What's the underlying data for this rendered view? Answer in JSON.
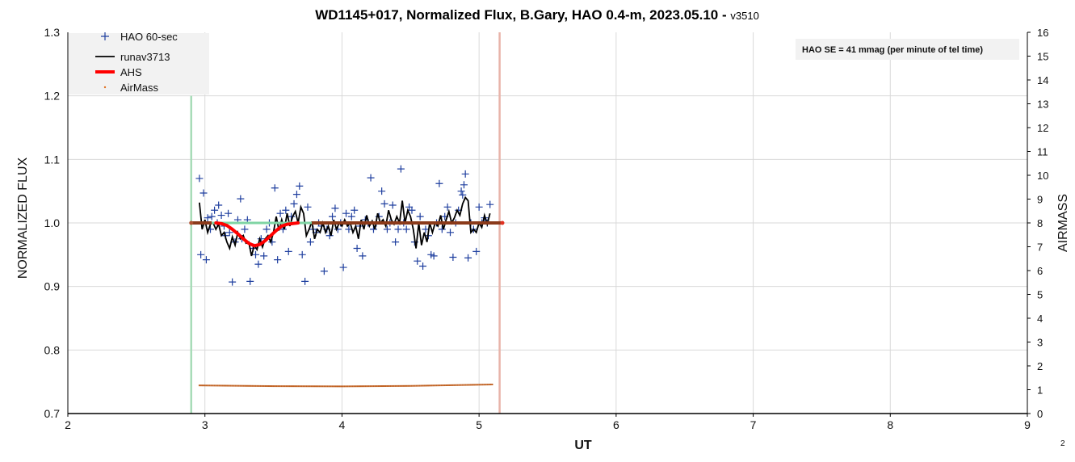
{
  "chart_data": {
    "type": "scatter",
    "title": "WD1145+017, Normalized Flux, B.Gary, HAO 0.4-m, 2023.05.10 - ",
    "title_version": "v3510",
    "xlabel": "UT",
    "ylabel": "NORMALIZED FLUX",
    "y2label": "AIRMASS",
    "xlim": [
      2,
      9
    ],
    "ylim": [
      0.7,
      1.3
    ],
    "y2lim": [
      0,
      16
    ],
    "x_ticks": [
      "2",
      "3",
      "4",
      "5",
      "6",
      "7",
      "8",
      "9"
    ],
    "y_ticks": [
      "0.7",
      "0.8",
      "0.9",
      "1.0",
      "1.1",
      "1.2",
      "1.3"
    ],
    "y2_ticks": [
      "0",
      "1",
      "2",
      "3",
      "4",
      "5",
      "6",
      "7",
      "8",
      "9",
      "10",
      "11",
      "12",
      "13",
      "14",
      "15",
      "16"
    ],
    "grid": true,
    "legend_position": "top-left",
    "legend": [
      {
        "label": "HAO 60-sec",
        "marker": "plus",
        "color": "#1f3f9f"
      },
      {
        "label": "runav3713",
        "marker": "line",
        "color": "#000000"
      },
      {
        "label": "AHS",
        "marker": "thick-line",
        "color": "#ff0000"
      },
      {
        "label": "AirMass",
        "marker": "dot",
        "color": "#e07020"
      }
    ],
    "annotation": "HAO SE =  41 mmag (per minute of tel time)",
    "corner_label": "2",
    "colors": {
      "flux": "#1f3f9f",
      "runav": "#000000",
      "ahs": "#ff0000",
      "airmass": "#c06020",
      "baseline": "#8b3a1a",
      "baseline_gap": "#7fd4a4",
      "start_line": "#a8dcb8",
      "end_line": "#e8b4aa"
    },
    "vertical_markers": [
      {
        "name": "start",
        "x": 2.9
      },
      {
        "name": "end",
        "x": 5.15
      }
    ],
    "baseline": {
      "y": 1.0,
      "x_start": 2.9,
      "x_end": 5.17,
      "gap_start": 3.05,
      "gap_end": 3.78
    },
    "flux_series": {
      "name": "HAO 60-sec",
      "points": [
        [
          2.96,
          1.07
        ],
        [
          2.97,
          0.95
        ],
        [
          2.99,
          1.047
        ],
        [
          3.01,
          0.942
        ],
        [
          3.02,
          1.008
        ],
        [
          3.04,
          0.99
        ],
        [
          3.05,
          1.01
        ],
        [
          3.07,
          1.02
        ],
        [
          3.09,
          1.0
        ],
        [
          3.1,
          1.028
        ],
        [
          3.12,
          1.012
        ],
        [
          3.14,
          0.995
        ],
        [
          3.15,
          0.98
        ],
        [
          3.17,
          1.015
        ],
        [
          3.18,
          0.985
        ],
        [
          3.2,
          0.907
        ],
        [
          3.22,
          0.97
        ],
        [
          3.24,
          1.005
        ],
        [
          3.26,
          1.038
        ],
        [
          3.27,
          0.975
        ],
        [
          3.29,
          0.99
        ],
        [
          3.31,
          1.005
        ],
        [
          3.33,
          0.908
        ],
        [
          3.35,
          0.96
        ],
        [
          3.37,
          0.95
        ],
        [
          3.39,
          0.935
        ],
        [
          3.41,
          0.975
        ],
        [
          3.43,
          0.948
        ],
        [
          3.45,
          0.99
        ],
        [
          3.47,
          1.0
        ],
        [
          3.49,
          0.97
        ],
        [
          3.51,
          1.055
        ],
        [
          3.53,
          0.942
        ],
        [
          3.55,
          1.015
        ],
        [
          3.57,
          0.99
        ],
        [
          3.59,
          1.02
        ],
        [
          3.61,
          0.955
        ],
        [
          3.63,
          1.01
        ],
        [
          3.65,
          1.03
        ],
        [
          3.67,
          1.045
        ],
        [
          3.69,
          1.058
        ],
        [
          3.71,
          0.95
        ],
        [
          3.73,
          0.908
        ],
        [
          3.75,
          1.025
        ],
        [
          3.77,
          0.97
        ],
        [
          3.79,
          0.99
        ],
        [
          3.81,
          0.985
        ],
        [
          3.83,
          1.0
        ],
        [
          3.85,
          0.995
        ],
        [
          3.87,
          0.924
        ],
        [
          3.89,
          0.99
        ],
        [
          3.91,
          0.98
        ],
        [
          3.93,
          1.01
        ],
        [
          3.95,
          1.023
        ],
        [
          3.97,
          0.99
        ],
        [
          3.99,
          1.0
        ],
        [
          4.01,
          0.93
        ],
        [
          4.03,
          1.015
        ],
        [
          4.05,
          0.99
        ],
        [
          4.07,
          1.01
        ],
        [
          4.09,
          1.02
        ],
        [
          4.11,
          0.96
        ],
        [
          4.13,
          0.995
        ],
        [
          4.15,
          0.948
        ],
        [
          4.17,
          1.005
        ],
        [
          4.19,
          1.0
        ],
        [
          4.21,
          1.071
        ],
        [
          4.23,
          0.99
        ],
        [
          4.25,
          1.0
        ],
        [
          4.27,
          1.01
        ],
        [
          4.29,
          1.05
        ],
        [
          4.31,
          1.03
        ],
        [
          4.33,
          0.99
        ],
        [
          4.35,
          1.0
        ],
        [
          4.37,
          1.028
        ],
        [
          4.39,
          0.97
        ],
        [
          4.41,
          0.99
        ],
        [
          4.43,
          1.085
        ],
        [
          4.45,
          1.0
        ],
        [
          4.47,
          0.99
        ],
        [
          4.49,
          1.025
        ],
        [
          4.51,
          1.02
        ],
        [
          4.53,
          0.97
        ],
        [
          4.55,
          0.94
        ],
        [
          4.57,
          1.01
        ],
        [
          4.59,
          0.932
        ],
        [
          4.61,
          0.99
        ],
        [
          4.63,
          0.98
        ],
        [
          4.65,
          0.95
        ],
        [
          4.67,
          0.948
        ],
        [
          4.69,
          1.0
        ],
        [
          4.71,
          1.062
        ],
        [
          4.73,
          0.99
        ],
        [
          4.75,
          1.01
        ],
        [
          4.77,
          1.025
        ],
        [
          4.79,
          0.985
        ],
        [
          4.81,
          0.946
        ],
        [
          4.83,
          1.0
        ],
        [
          4.85,
          1.02
        ],
        [
          4.87,
          1.05
        ],
        [
          4.88,
          1.044
        ],
        [
          4.89,
          1.06
        ],
        [
          4.9,
          1.077
        ],
        [
          4.92,
          0.945
        ],
        [
          4.94,
          1.0
        ],
        [
          4.96,
          0.99
        ],
        [
          4.98,
          0.955
        ],
        [
          5.0,
          1.025
        ],
        [
          5.02,
          1.0
        ],
        [
          5.04,
          1.008
        ],
        [
          5.06,
          1.0
        ],
        [
          5.08,
          1.029
        ]
      ]
    },
    "runav_series": {
      "name": "runav3713",
      "points": [
        [
          2.96,
          1.032
        ],
        [
          2.98,
          0.99
        ],
        [
          3.0,
          1.005
        ],
        [
          3.02,
          0.985
        ],
        [
          3.04,
          0.998
        ],
        [
          3.06,
          1.0
        ],
        [
          3.08,
          0.99
        ],
        [
          3.1,
          0.998
        ],
        [
          3.12,
          0.98
        ],
        [
          3.14,
          0.985
        ],
        [
          3.16,
          0.97
        ],
        [
          3.18,
          0.96
        ],
        [
          3.2,
          0.978
        ],
        [
          3.22,
          0.965
        ],
        [
          3.24,
          0.985
        ],
        [
          3.26,
          0.975
        ],
        [
          3.28,
          0.98
        ],
        [
          3.3,
          0.968
        ],
        [
          3.32,
          0.97
        ],
        [
          3.34,
          0.948
        ],
        [
          3.36,
          0.965
        ],
        [
          3.38,
          0.958
        ],
        [
          3.4,
          0.975
        ],
        [
          3.42,
          0.962
        ],
        [
          3.44,
          0.975
        ],
        [
          3.46,
          0.98
        ],
        [
          3.48,
          0.97
        ],
        [
          3.5,
          0.985
        ],
        [
          3.52,
          1.01
        ],
        [
          3.54,
          0.988
        ],
        [
          3.56,
          1.005
        ],
        [
          3.58,
          0.99
        ],
        [
          3.6,
          1.015
        ],
        [
          3.62,
          0.995
        ],
        [
          3.64,
          1.01
        ],
        [
          3.66,
          1.018
        ],
        [
          3.68,
          1.0
        ],
        [
          3.7,
          1.025
        ],
        [
          3.72,
          1.015
        ],
        [
          3.74,
          0.98
        ],
        [
          3.76,
          0.99
        ],
        [
          3.78,
          1.002
        ],
        [
          3.8,
          0.975
        ],
        [
          3.82,
          0.99
        ],
        [
          3.84,
          0.985
        ],
        [
          3.86,
          1.0
        ],
        [
          3.88,
          0.985
        ],
        [
          3.9,
          0.995
        ],
        [
          3.92,
          0.98
        ],
        [
          3.94,
          1.005
        ],
        [
          3.96,
          0.99
        ],
        [
          3.98,
          1.0
        ],
        [
          4.0,
          0.995
        ],
        [
          4.02,
          1.005
        ],
        [
          4.04,
          0.995
        ],
        [
          4.06,
          1.0
        ],
        [
          4.08,
          0.985
        ],
        [
          4.1,
          0.995
        ],
        [
          4.12,
          0.975
        ],
        [
          4.14,
          1.005
        ],
        [
          4.16,
          0.99
        ],
        [
          4.18,
          1.012
        ],
        [
          4.2,
          0.995
        ],
        [
          4.22,
          1.003
        ],
        [
          4.24,
          0.99
        ],
        [
          4.26,
          1.015
        ],
        [
          4.28,
          1.0
        ],
        [
          4.3,
          1.005
        ],
        [
          4.32,
          0.995
        ],
        [
          4.34,
          1.02
        ],
        [
          4.36,
          1.005
        ],
        [
          4.38,
          0.998
        ],
        [
          4.4,
          1.01
        ],
        [
          4.42,
          1.0
        ],
        [
          4.44,
          1.035
        ],
        [
          4.46,
          1.0
        ],
        [
          4.48,
          1.02
        ],
        [
          4.5,
          1.01
        ],
        [
          4.52,
          0.99
        ],
        [
          4.54,
          0.96
        ],
        [
          4.56,
          1.0
        ],
        [
          4.58,
          0.965
        ],
        [
          4.6,
          0.985
        ],
        [
          4.62,
          0.97
        ],
        [
          4.64,
          1.0
        ],
        [
          4.66,
          0.985
        ],
        [
          4.68,
          1.0
        ],
        [
          4.7,
          0.995
        ],
        [
          4.72,
          1.012
        ],
        [
          4.74,
          0.99
        ],
        [
          4.76,
          1.005
        ],
        [
          4.78,
          1.018
        ],
        [
          4.8,
          1.0
        ],
        [
          4.82,
          1.008
        ],
        [
          4.84,
          1.02
        ],
        [
          4.86,
          1.012
        ],
        [
          4.88,
          1.03
        ],
        [
          4.9,
          1.04
        ],
        [
          4.92,
          1.035
        ],
        [
          4.94,
          0.985
        ],
        [
          4.96,
          0.99
        ],
        [
          4.98,
          0.985
        ],
        [
          5.0,
          1.0
        ],
        [
          5.02,
          0.993
        ],
        [
          5.04,
          1.012
        ],
        [
          5.06,
          0.998
        ],
        [
          5.08,
          1.015
        ]
      ]
    },
    "ahs_series": {
      "name": "AHS",
      "points": [
        [
          3.08,
          1.0
        ],
        [
          3.12,
          0.999
        ],
        [
          3.16,
          0.996
        ],
        [
          3.2,
          0.99
        ],
        [
          3.24,
          0.983
        ],
        [
          3.28,
          0.975
        ],
        [
          3.32,
          0.968
        ],
        [
          3.36,
          0.964
        ],
        [
          3.4,
          0.966
        ],
        [
          3.44,
          0.972
        ],
        [
          3.48,
          0.98
        ],
        [
          3.52,
          0.988
        ],
        [
          3.56,
          0.995
        ],
        [
          3.6,
          0.998
        ],
        [
          3.64,
          0.999
        ],
        [
          3.68,
          1.0
        ]
      ]
    },
    "airmass_series": {
      "name": "AirMass",
      "x_start": 2.96,
      "x_end": 5.1,
      "step": 0.02,
      "values_note_free": true,
      "anchors": [
        [
          2.96,
          1.18
        ],
        [
          3.5,
          1.15
        ],
        [
          4.0,
          1.14
        ],
        [
          4.5,
          1.16
        ],
        [
          5.1,
          1.22
        ]
      ]
    }
  }
}
